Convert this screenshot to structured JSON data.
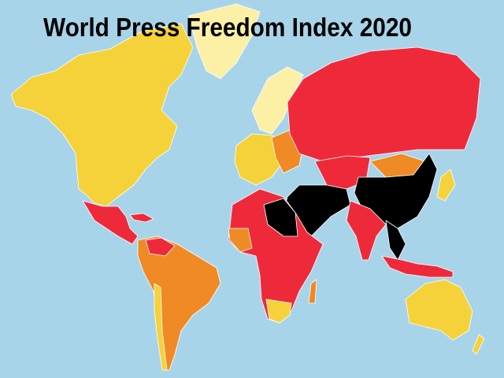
{
  "title": "World Press Freedom Index 2020"
}
